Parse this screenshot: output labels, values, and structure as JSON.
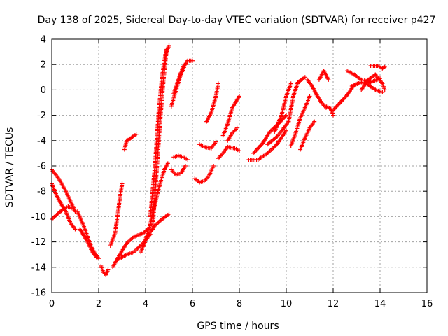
{
  "chart_data": {
    "type": "scatter",
    "title": "Day 138 of 2025, Sidereal Day-to-day VTEC variation (SDTVAR) for receiver p427",
    "xlabel": "GPS time / hours",
    "ylabel": "SDTVAR / TECUs",
    "xlim": [
      0,
      16
    ],
    "ylim": [
      -16,
      4
    ],
    "x_ticks": [
      "0",
      "2",
      "4",
      "6",
      "8",
      "10",
      "12",
      "14",
      "16"
    ],
    "y_ticks": [
      "-16",
      "-14",
      "-12",
      "-10",
      "-8",
      "-6",
      "-4",
      "-2",
      "0",
      "2",
      "4"
    ],
    "x_tick_values": [
      0,
      2,
      4,
      6,
      8,
      10,
      12,
      14,
      16
    ],
    "y_tick_values": [
      -16,
      -14,
      -12,
      -10,
      -8,
      -6,
      -4,
      -2,
      0,
      2,
      4
    ],
    "grid": true,
    "marker": "+",
    "color": "#ff0000",
    "series_tracks": [
      [
        [
          0.0,
          -6.3
        ],
        [
          0.3,
          -7.0
        ],
        [
          0.6,
          -8.0
        ],
        [
          0.9,
          -9.2
        ],
        [
          1.0,
          -9.6
        ]
      ],
      [
        [
          0.0,
          -7.4
        ],
        [
          0.2,
          -8.3
        ],
        [
          0.4,
          -9.0
        ],
        [
          0.6,
          -9.6
        ],
        [
          0.8,
          -10.5
        ],
        [
          1.0,
          -11.0
        ]
      ],
      [
        [
          0.0,
          -10.2
        ],
        [
          0.3,
          -9.7
        ],
        [
          0.5,
          -9.4
        ],
        [
          0.7,
          -9.2
        ],
        [
          0.9,
          -9.4
        ]
      ],
      [
        [
          1.1,
          -9.6
        ],
        [
          1.4,
          -10.9
        ],
        [
          1.6,
          -12.0
        ],
        [
          1.8,
          -12.8
        ],
        [
          2.0,
          -13.3
        ]
      ],
      [
        [
          1.2,
          -11.0
        ],
        [
          1.5,
          -11.9
        ],
        [
          1.7,
          -12.7
        ],
        [
          1.9,
          -13.2
        ]
      ],
      [
        [
          2.1,
          -13.9
        ],
        [
          2.2,
          -14.4
        ],
        [
          2.3,
          -14.6
        ],
        [
          2.4,
          -14.2
        ]
      ],
      [
        [
          2.5,
          -12.3
        ],
        [
          2.7,
          -11.3
        ],
        [
          2.8,
          -10.0
        ],
        [
          2.9,
          -8.6
        ],
        [
          3.0,
          -7.4
        ]
      ],
      [
        [
          2.6,
          -14.0
        ],
        [
          2.9,
          -13.0
        ],
        [
          3.2,
          -12.1
        ],
        [
          3.5,
          -11.6
        ],
        [
          3.9,
          -11.3
        ],
        [
          4.1,
          -11.0
        ]
      ],
      [
        [
          2.8,
          -13.4
        ],
        [
          3.2,
          -13.0
        ],
        [
          3.5,
          -12.8
        ],
        [
          3.9,
          -12.1
        ],
        [
          4.2,
          -11.4
        ]
      ],
      [
        [
          3.8,
          -12.8
        ],
        [
          4.1,
          -11.5
        ],
        [
          4.4,
          -10.7
        ],
        [
          4.7,
          -10.2
        ],
        [
          5.0,
          -9.8
        ]
      ],
      [
        [
          4.0,
          -11.8
        ],
        [
          4.2,
          -10.6
        ],
        [
          4.4,
          -9.0
        ],
        [
          4.6,
          -7.5
        ],
        [
          4.8,
          -6.3
        ],
        [
          4.95,
          -5.8
        ]
      ],
      [
        [
          4.2,
          -10.0
        ],
        [
          4.4,
          -6.0
        ],
        [
          4.55,
          -2.0
        ],
        [
          4.7,
          1.0
        ],
        [
          4.85,
          2.8
        ],
        [
          5.0,
          3.5
        ]
      ],
      [
        [
          4.3,
          -11.0
        ],
        [
          4.45,
          -7.0
        ],
        [
          4.6,
          -3.0
        ],
        [
          4.75,
          0.5
        ],
        [
          4.9,
          3.2
        ]
      ],
      [
        [
          3.1,
          -4.7
        ],
        [
          3.2,
          -4.0
        ],
        [
          3.3,
          -3.9
        ],
        [
          3.6,
          -3.5
        ]
      ],
      [
        [
          5.2,
          -0.3
        ],
        [
          5.4,
          0.8
        ],
        [
          5.6,
          1.8
        ],
        [
          5.8,
          2.3
        ],
        [
          6.0,
          2.3
        ]
      ],
      [
        [
          5.1,
          -1.3
        ],
        [
          5.3,
          0.0
        ],
        [
          5.5,
          1.2
        ],
        [
          5.7,
          2.0
        ]
      ],
      [
        [
          5.1,
          -6.3
        ],
        [
          5.3,
          -6.7
        ],
        [
          5.5,
          -6.6
        ],
        [
          5.7,
          -6.0
        ]
      ],
      [
        [
          5.2,
          -5.3
        ],
        [
          5.4,
          -5.2
        ],
        [
          5.6,
          -5.3
        ],
        [
          5.8,
          -5.5
        ]
      ],
      [
        [
          6.1,
          -7.0
        ],
        [
          6.3,
          -7.3
        ],
        [
          6.5,
          -7.2
        ],
        [
          6.7,
          -6.8
        ],
        [
          6.9,
          -6.0
        ]
      ],
      [
        [
          6.3,
          -4.3
        ],
        [
          6.5,
          -4.5
        ],
        [
          6.8,
          -4.6
        ],
        [
          7.0,
          -4.1
        ]
      ],
      [
        [
          6.6,
          -2.5
        ],
        [
          6.8,
          -1.8
        ],
        [
          7.0,
          -0.5
        ],
        [
          7.1,
          0.5
        ]
      ],
      [
        [
          7.1,
          -5.4
        ],
        [
          7.3,
          -5.0
        ],
        [
          7.5,
          -4.5
        ],
        [
          7.8,
          -4.6
        ],
        [
          8.0,
          -4.8
        ]
      ],
      [
        [
          7.3,
          -3.6
        ],
        [
          7.5,
          -2.7
        ],
        [
          7.7,
          -1.4
        ],
        [
          8.0,
          -0.5
        ]
      ],
      [
        [
          7.5,
          -4.0
        ],
        [
          7.7,
          -3.4
        ],
        [
          7.9,
          -3.0
        ]
      ],
      [
        [
          8.4,
          -5.5
        ],
        [
          8.8,
          -5.5
        ],
        [
          9.2,
          -5.0
        ],
        [
          9.6,
          -4.3
        ],
        [
          10.0,
          -3.2
        ]
      ],
      [
        [
          8.6,
          -5.0
        ],
        [
          9.0,
          -4.2
        ],
        [
          9.3,
          -3.3
        ],
        [
          9.7,
          -2.6
        ],
        [
          10.0,
          -2.0
        ]
      ],
      [
        [
          9.2,
          -4.3
        ],
        [
          9.6,
          -3.7
        ],
        [
          9.9,
          -3.0
        ],
        [
          10.1,
          -2.5
        ],
        [
          10.3,
          -0.5
        ],
        [
          10.5,
          0.6
        ],
        [
          10.8,
          1.0
        ]
      ],
      [
        [
          9.5,
          -3.3
        ],
        [
          9.8,
          -2.0
        ],
        [
          10.0,
          -0.5
        ],
        [
          10.2,
          0.5
        ]
      ],
      [
        [
          10.2,
          -4.4
        ],
        [
          10.4,
          -3.4
        ],
        [
          10.6,
          -2.2
        ],
        [
          10.8,
          -1.4
        ],
        [
          11.0,
          -0.5
        ]
      ],
      [
        [
          10.6,
          -4.7
        ],
        [
          10.8,
          -3.8
        ],
        [
          11.0,
          -3.0
        ],
        [
          11.2,
          -2.5
        ]
      ],
      [
        [
          10.9,
          0.8
        ],
        [
          11.1,
          0.3
        ],
        [
          11.3,
          -0.4
        ],
        [
          11.5,
          -1.0
        ],
        [
          11.7,
          -1.4
        ]
      ],
      [
        [
          11.4,
          0.8
        ],
        [
          11.6,
          1.5
        ],
        [
          11.8,
          0.8
        ]
      ],
      [
        [
          11.6,
          -1.2
        ],
        [
          11.9,
          -1.5
        ],
        [
          12.0,
          -2.0
        ]
      ],
      [
        [
          12.0,
          -1.6
        ],
        [
          12.3,
          -1.0
        ],
        [
          12.6,
          -0.4
        ],
        [
          12.9,
          0.4
        ],
        [
          13.2,
          0.6
        ]
      ],
      [
        [
          12.6,
          1.5
        ],
        [
          12.9,
          1.2
        ],
        [
          13.2,
          0.8
        ],
        [
          13.6,
          0.6
        ],
        [
          14.0,
          0.9
        ]
      ],
      [
        [
          12.8,
          0.3
        ],
        [
          13.2,
          0.6
        ],
        [
          13.5,
          0.4
        ],
        [
          13.8,
          0.0
        ],
        [
          14.1,
          -0.2
        ]
      ],
      [
        [
          13.2,
          0.0
        ],
        [
          13.5,
          0.8
        ],
        [
          13.8,
          1.2
        ],
        [
          14.1,
          0.5
        ],
        [
          14.2,
          0.0
        ]
      ],
      [
        [
          13.6,
          1.9
        ],
        [
          13.9,
          1.9
        ],
        [
          14.1,
          1.7
        ],
        [
          14.2,
          1.8
        ]
      ]
    ]
  }
}
